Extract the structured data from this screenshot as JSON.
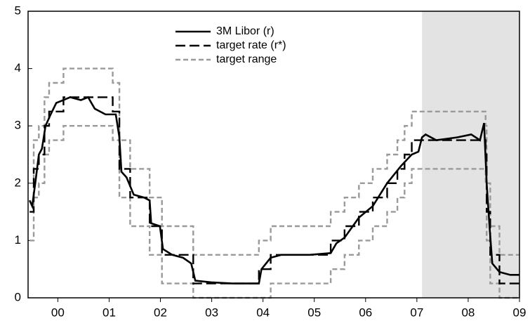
{
  "chart_data": {
    "type": "line",
    "xlim": [
      1999.42,
      2009.0
    ],
    "xticks": [
      {
        "value": 2000,
        "label": "00"
      },
      {
        "value": 2001,
        "label": "01"
      },
      {
        "value": 2002,
        "label": "02"
      },
      {
        "value": 2003,
        "label": "03"
      },
      {
        "value": 2004,
        "label": "04"
      },
      {
        "value": 2005,
        "label": "05"
      },
      {
        "value": 2006,
        "label": "06"
      },
      {
        "value": 2007,
        "label": "07"
      },
      {
        "value": 2008,
        "label": "08"
      },
      {
        "value": 2009,
        "label": "09"
      }
    ],
    "ylim": [
      0,
      5
    ],
    "yticks": [
      0,
      1,
      2,
      3,
      4,
      5
    ],
    "shade": [
      2007.1,
      2009.0
    ],
    "shade_color": "#e3e3e3",
    "series": [
      {
        "name": "3M Libor (r)",
        "color": "#000000",
        "dash": "none",
        "step": false,
        "x": [
          1999.45,
          1999.5,
          1999.56,
          1999.63,
          1999.69,
          1999.76,
          1999.86,
          1999.97,
          2000.11,
          2000.24,
          2000.45,
          2000.59,
          2000.72,
          2000.93,
          2001.13,
          2001.2,
          2001.24,
          2001.34,
          2001.48,
          2001.68,
          2001.79,
          2001.82,
          2001.99,
          2002.05,
          2002.23,
          2002.44,
          2002.6,
          2002.68,
          2002.99,
          2003.4,
          2003.92,
          2003.97,
          2004.15,
          2004.36,
          2004.91,
          2005.32,
          2005.43,
          2005.59,
          2005.87,
          2006.14,
          2006.42,
          2006.69,
          2006.9,
          2007.03,
          2007.1,
          2007.17,
          2007.38,
          2007.79,
          2008.06,
          2008.23,
          2008.31,
          2008.36,
          2008.42,
          2008.47,
          2008.61,
          2008.82,
          2009.0
        ],
        "values": [
          1.7,
          1.6,
          2.0,
          2.5,
          2.6,
          3.0,
          3.2,
          3.4,
          3.45,
          3.5,
          3.45,
          3.5,
          3.3,
          3.2,
          3.2,
          2.8,
          2.2,
          2.1,
          1.8,
          1.75,
          1.7,
          1.3,
          1.25,
          0.85,
          0.75,
          0.7,
          0.6,
          0.3,
          0.27,
          0.25,
          0.25,
          0.5,
          0.7,
          0.75,
          0.75,
          0.78,
          0.95,
          1.05,
          1.4,
          1.6,
          2.0,
          2.3,
          2.5,
          2.55,
          2.8,
          2.85,
          2.75,
          2.8,
          2.85,
          2.75,
          3.05,
          2.0,
          1.2,
          0.6,
          0.45,
          0.4,
          0.4
        ]
      },
      {
        "name": "target rate (r*)",
        "color": "#000000",
        "dash": "14 6",
        "step": true,
        "x": [
          1999.45,
          1999.53,
          1999.63,
          1999.74,
          1999.83,
          2000.11,
          2001.07,
          2001.2,
          2001.41,
          2001.79,
          2002.03,
          2002.64,
          2003.92,
          2004.15,
          2005.32,
          2005.59,
          2005.87,
          2006.14,
          2006.42,
          2006.62,
          2006.76,
          2006.9,
          2008.34,
          2008.36,
          2008.43,
          2008.61,
          2009.0
        ],
        "values": [
          1.5,
          2.25,
          2.5,
          3.0,
          3.25,
          3.5,
          3.25,
          2.25,
          1.75,
          1.25,
          0.75,
          0.25,
          0.5,
          0.75,
          1.0,
          1.25,
          1.5,
          1.75,
          2.0,
          2.25,
          2.5,
          2.75,
          2.5,
          1.5,
          0.75,
          0.25,
          0.25
        ]
      },
      {
        "name": "target range",
        "color": "#9a9a9a",
        "dash": "7 4",
        "step": true,
        "x": [
          1999.45,
          1999.53,
          1999.63,
          1999.74,
          1999.83,
          2000.11,
          2001.07,
          2001.2,
          2001.41,
          2001.79,
          2002.03,
          2002.64,
          2003.92,
          2004.15,
          2005.32,
          2005.59,
          2005.87,
          2006.14,
          2006.42,
          2006.62,
          2006.76,
          2006.9,
          2008.34,
          2008.36,
          2008.43,
          2008.61,
          2009.0
        ],
        "values": [
          2,
          2.75,
          3,
          3.5,
          3.75,
          4,
          3.75,
          2.75,
          2.25,
          1.75,
          1.25,
          0.75,
          1,
          1.25,
          1.5,
          1.75,
          2,
          2.25,
          2.5,
          2.75,
          3,
          3.25,
          3,
          2,
          1.25,
          0.75,
          0.75
        ],
        "lower": [
          1,
          1.75,
          2,
          2.5,
          2.75,
          3,
          2.75,
          1.75,
          1.25,
          0.75,
          0.25,
          0,
          0,
          0.25,
          0.5,
          0.75,
          1,
          1.25,
          1.5,
          1.75,
          2,
          2.25,
          2,
          1,
          0.25,
          0,
          0
        ]
      }
    ]
  }
}
